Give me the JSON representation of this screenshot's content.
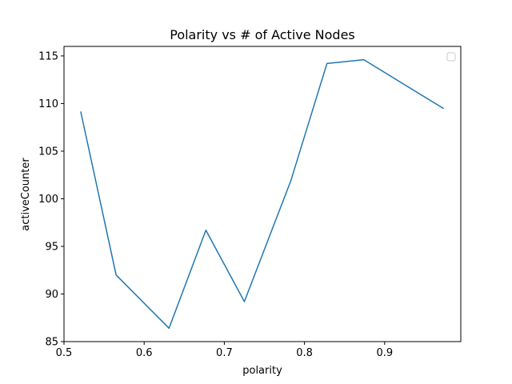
{
  "chart_data": {
    "type": "line",
    "title": "Polarity vs # of Active Nodes",
    "xlabel": "polarity",
    "ylabel": "activeCounter",
    "xlim": [
      0.5,
      0.995
    ],
    "ylim": [
      85,
      116
    ],
    "xticks": [
      0.5,
      0.6,
      0.7,
      0.8,
      0.9
    ],
    "xtick_labels": [
      "0.5",
      "0.6",
      "0.7",
      "0.8",
      "0.9"
    ],
    "yticks": [
      85,
      90,
      95,
      100,
      105,
      110,
      115
    ],
    "ytick_labels": [
      "85",
      "90",
      "95",
      "100",
      "105",
      "110",
      "115"
    ],
    "grid": false,
    "legend": {
      "placement": "top-right",
      "entries": []
    },
    "series": [
      {
        "color": "#1f77b4",
        "x": [
          0.521,
          0.565,
          0.631,
          0.677,
          0.725,
          0.783,
          0.828,
          0.874,
          0.973
        ],
        "y": [
          109.1,
          92.0,
          86.4,
          96.7,
          89.2,
          101.9,
          114.2,
          114.6,
          109.5
        ]
      }
    ]
  }
}
